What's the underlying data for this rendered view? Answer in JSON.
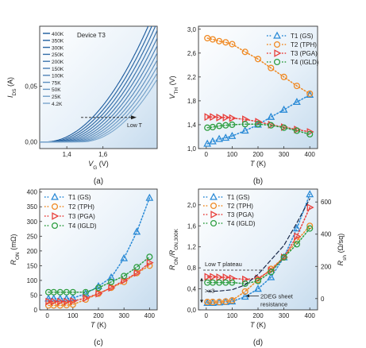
{
  "chart_data": [
    {
      "type": "line",
      "caption": "(a)",
      "annotation": "Device T3",
      "arrow_label": "Low T",
      "xlabel": {
        "main": "V",
        "sub": "G",
        "unit": "(V)"
      },
      "ylabel": {
        "main": "I",
        "sub": "DS",
        "unit": "(A)"
      },
      "xlim": [
        1.25,
        1.9
      ],
      "ylim": [
        -0.006,
        0.104
      ],
      "xticks": [
        1.4,
        1.6
      ],
      "yticks": [
        0.0,
        0.05
      ],
      "xtick_labels": [
        "1,4",
        "1,6"
      ],
      "ytick_labels": [
        "0,00",
        "0,05"
      ],
      "curves": [
        {
          "name": "400K",
          "vth": 1.28,
          "color": "#1b5a9c"
        },
        {
          "name": "350K",
          "vth": 1.3,
          "color": "#22609f"
        },
        {
          "name": "300K",
          "vth": 1.32,
          "color": "#2a66a3"
        },
        {
          "name": "250K",
          "vth": 1.34,
          "color": "#336da8"
        },
        {
          "name": "200K",
          "vth": 1.36,
          "color": "#3d75ad"
        },
        {
          "name": "150K",
          "vth": 1.38,
          "color": "#477db3"
        },
        {
          "name": "100K",
          "vth": 1.4,
          "color": "#5185b8"
        },
        {
          "name": "75K",
          "vth": 1.42,
          "color": "#5b8dbd"
        },
        {
          "name": "50K",
          "vth": 1.44,
          "color": "#6595c2"
        },
        {
          "name": "25K",
          "vth": 1.46,
          "color": "#6f9dc7"
        },
        {
          "name": "4.2K",
          "vth": 1.48,
          "color": "#79a5cc"
        }
      ]
    },
    {
      "type": "line",
      "caption": "(b)",
      "xlabel": {
        "main": "T",
        "unit": "(K)"
      },
      "ylabel": {
        "main": "V",
        "sub": "TH",
        "unit": "(V)"
      },
      "xlim": [
        -30,
        430
      ],
      "ylim": [
        1.0,
        3.05
      ],
      "xticks": [
        0,
        100,
        200,
        300,
        400
      ],
      "yticks": [
        1.0,
        1.4,
        1.8,
        2.2,
        2.6,
        3.0
      ],
      "xtick_labels": [
        "0",
        "100",
        "200",
        "300",
        "400"
      ],
      "ytick_labels": [
        "1,0",
        "1,4",
        "1,8",
        "2,2",
        "2,6",
        "3,0"
      ],
      "legend_position": "top-right",
      "series": [
        {
          "name": "T1 (GS)",
          "marker": "triangle-up",
          "color": "#2a8ad6",
          "x": [
            4.2,
            25,
            50,
            75,
            100,
            150,
            200,
            250,
            300,
            350,
            400
          ],
          "y": [
            1.08,
            1.12,
            1.16,
            1.18,
            1.21,
            1.3,
            1.4,
            1.53,
            1.65,
            1.78,
            1.9
          ]
        },
        {
          "name": "T2 (TPH)",
          "marker": "circle",
          "color": "#f08a24",
          "x": [
            4.2,
            25,
            50,
            75,
            100,
            150,
            200,
            250,
            300,
            350,
            400
          ],
          "y": [
            2.85,
            2.83,
            2.8,
            2.78,
            2.75,
            2.62,
            2.5,
            2.35,
            2.2,
            2.05,
            1.92
          ]
        },
        {
          "name": "T3 (PGA)",
          "marker": "triangle-right",
          "color": "#e8403c",
          "x": [
            4.2,
            25,
            50,
            75,
            100,
            150,
            200,
            250,
            300,
            350,
            400
          ],
          "y": [
            1.53,
            1.53,
            1.52,
            1.52,
            1.51,
            1.49,
            1.45,
            1.4,
            1.36,
            1.32,
            1.28
          ]
        },
        {
          "name": "T4 (IGLD)",
          "marker": "circle",
          "color": "#2e9e40",
          "x": [
            4.2,
            25,
            50,
            75,
            100,
            150,
            200,
            250,
            300,
            350,
            400
          ],
          "y": [
            1.35,
            1.36,
            1.38,
            1.39,
            1.4,
            1.41,
            1.41,
            1.39,
            1.35,
            1.3,
            1.24
          ]
        }
      ]
    },
    {
      "type": "line",
      "caption": "(c)",
      "xlabel": {
        "main": "T",
        "unit": "(K)"
      },
      "ylabel": {
        "main": "R",
        "sub": "ON",
        "unit": "(mΩ)"
      },
      "xlim": [
        -30,
        430
      ],
      "ylim": [
        0,
        410
      ],
      "xticks": [
        0,
        100,
        200,
        300,
        400
      ],
      "yticks": [
        0,
        50,
        100,
        150,
        200,
        250,
        300,
        350,
        400
      ],
      "xtick_labels": [
        "0",
        "100",
        "200",
        "300",
        "400"
      ],
      "ytick_labels": [
        "0",
        "50",
        "100",
        "150",
        "200",
        "250",
        "300",
        "350",
        "400"
      ],
      "legend_position": "top-left",
      "series": [
        {
          "name": "T1 (GS)",
          "marker": "triangle-up",
          "color": "#2a8ad6",
          "x": [
            4.2,
            25,
            50,
            75,
            100,
            150,
            200,
            250,
            300,
            350,
            400
          ],
          "y": [
            38,
            38,
            38,
            38,
            40,
            55,
            80,
            110,
            175,
            265,
            380
          ]
        },
        {
          "name": "T2 (TPH)",
          "marker": "circle",
          "color": "#f08a24",
          "x": [
            4.2,
            25,
            50,
            75,
            100,
            150,
            200,
            250,
            300,
            350,
            400
          ],
          "y": [
            15,
            15,
            15,
            16,
            18,
            35,
            55,
            75,
            95,
            125,
            150
          ]
        },
        {
          "name": "T3 (PGA)",
          "marker": "triangle-right",
          "color": "#e8403c",
          "x": [
            4.2,
            25,
            50,
            75,
            100,
            150,
            200,
            250,
            300,
            350,
            400
          ],
          "y": [
            28,
            28,
            28,
            28,
            30,
            40,
            55,
            75,
            100,
            125,
            160
          ]
        },
        {
          "name": "T4 (IGLD)",
          "marker": "circle",
          "color": "#2e9e40",
          "x": [
            4.2,
            25,
            50,
            75,
            100,
            150,
            200,
            250,
            300,
            350,
            400
          ],
          "y": [
            60,
            60,
            60,
            60,
            60,
            60,
            75,
            95,
            115,
            145,
            180
          ]
        }
      ]
    },
    {
      "type": "line",
      "caption": "(d)",
      "xlabel": {
        "main": "T",
        "unit": "(K)"
      },
      "ylabel": {
        "main": "R",
        "sub": "ON",
        "mid": "/R",
        "sub2": "ON,300K"
      },
      "y2label": {
        "main": "R",
        "sub": "sh",
        "unit": "(Ω/sq)"
      },
      "xlim": [
        -30,
        430
      ],
      "ylim": [
        0.0,
        2.3
      ],
      "y2lim": [
        -70,
        680
      ],
      "xticks": [
        0,
        100,
        200,
        300,
        400
      ],
      "yticks": [
        0.0,
        0.4,
        0.8,
        1.2,
        1.6,
        2.0
      ],
      "y2ticks": [
        0,
        200,
        400,
        600
      ],
      "xtick_labels": [
        "0",
        "100",
        "200",
        "300",
        "400"
      ],
      "ytick_labels": [
        "0,0",
        "0,4",
        "0,8",
        "1,2",
        "1,6",
        "2,0"
      ],
      "y2tick_labels": [
        "0",
        "200",
        "400",
        "600"
      ],
      "legend_position": "top-left",
      "annotations": {
        "plateau": "Low T plateau",
        "factor": ">x3",
        "sheet_line1": "2DEG sheet",
        "sheet_line2": "resistance"
      },
      "series": [
        {
          "name": "T1 (GS)",
          "marker": "triangle-up",
          "color": "#2a8ad6",
          "x": [
            4.2,
            25,
            50,
            75,
            100,
            150,
            200,
            250,
            300,
            350,
            400
          ],
          "y": [
            0.13,
            0.13,
            0.14,
            0.15,
            0.16,
            0.25,
            0.4,
            0.62,
            1.0,
            1.55,
            2.2
          ]
        },
        {
          "name": "T2 (TPH)",
          "marker": "circle",
          "color": "#f08a24",
          "x": [
            4.2,
            25,
            50,
            75,
            100,
            150,
            200,
            250,
            300,
            350,
            400
          ],
          "y": [
            0.15,
            0.15,
            0.15,
            0.16,
            0.18,
            0.35,
            0.57,
            0.78,
            1.0,
            1.32,
            1.6
          ]
        },
        {
          "name": "T3 (PGA)",
          "marker": "triangle-right",
          "color": "#e8403c",
          "x": [
            4.2,
            25,
            50,
            75,
            100,
            150,
            200,
            250,
            300,
            350,
            400
          ],
          "y": [
            0.63,
            0.63,
            0.62,
            0.62,
            0.6,
            0.58,
            0.6,
            0.75,
            1.0,
            1.4,
            1.95
          ]
        },
        {
          "name": "T4 (IGLD)",
          "marker": "circle",
          "color": "#2e9e40",
          "x": [
            4.2,
            25,
            50,
            75,
            100,
            150,
            200,
            250,
            300,
            350,
            400
          ],
          "y": [
            0.52,
            0.52,
            0.52,
            0.52,
            0.52,
            0.5,
            0.55,
            0.72,
            1.0,
            1.25,
            1.55
          ]
        },
        {
          "name": "",
          "marker": "none",
          "color": "#1b2a4a",
          "line": "dashed",
          "axis": "right",
          "x": [
            4.2,
            50,
            100,
            150,
            200,
            250,
            300,
            350,
            400
          ],
          "y": [
            45,
            47,
            55,
            85,
            150,
            240,
            330,
            470,
            620
          ]
        }
      ]
    }
  ]
}
